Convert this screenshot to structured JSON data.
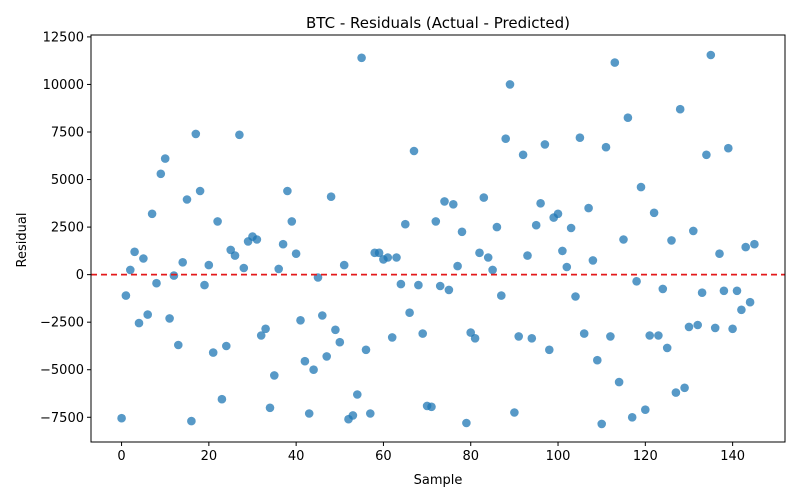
{
  "chart_data": {
    "type": "scatter",
    "title": "BTC - Residuals (Actual - Predicted)",
    "xlabel": "Sample",
    "ylabel": "Residual",
    "xlim": [
      -7,
      152
    ],
    "ylim": [
      -8800,
      12600
    ],
    "xticks": [
      0,
      20,
      40,
      60,
      80,
      100,
      120,
      140
    ],
    "yticks": [
      -7500,
      -5000,
      -2500,
      0,
      2500,
      5000,
      7500,
      10000,
      12500
    ],
    "ytick_labels": [
      "−7500",
      "−5000",
      "−2500",
      "0",
      "2500",
      "5000",
      "7500",
      "10000",
      "12500"
    ],
    "reference_line": {
      "y": 0,
      "style": "dashed",
      "color": "#e31a1c"
    },
    "point_color": "#1f77b4",
    "point_alpha": 0.75,
    "grid": false,
    "series": [
      {
        "x": [
          0,
          1,
          2,
          3,
          4,
          5,
          6,
          7,
          8,
          9,
          10,
          11,
          12,
          13,
          14,
          15,
          16,
          17,
          18,
          19,
          20,
          21,
          22,
          23,
          24,
          25,
          26,
          27,
          28,
          29,
          30,
          31,
          32,
          33,
          34,
          35,
          36,
          37,
          38,
          39,
          40,
          41,
          42,
          43,
          44,
          45,
          46,
          47,
          48,
          49,
          50,
          51,
          52,
          53,
          54,
          55,
          56,
          57,
          58,
          59,
          60,
          61,
          62,
          63,
          64,
          65,
          66,
          67,
          68,
          69,
          70,
          71,
          72,
          73,
          74,
          75,
          76,
          77,
          78,
          79,
          80,
          81,
          82,
          83,
          84,
          85,
          86,
          87,
          88,
          89,
          90,
          91,
          92,
          93,
          94,
          95,
          96,
          97,
          98,
          99,
          100,
          101,
          102,
          103,
          104,
          105,
          106,
          107,
          108,
          109,
          110,
          111,
          112,
          113,
          114,
          115,
          116,
          117,
          118,
          119,
          120,
          121,
          122,
          123,
          124,
          125,
          126,
          127,
          128,
          129,
          130,
          131,
          132,
          133,
          134,
          135,
          136,
          137,
          138,
          139,
          140,
          141,
          142,
          143,
          144,
          145
        ],
        "y": [
          -7550,
          -1100,
          250,
          1200,
          -2550,
          850,
          -2100,
          3200,
          -450,
          5300,
          6100,
          -2300,
          -50,
          -3700,
          650,
          3950,
          -7700,
          7400,
          4400,
          -550,
          500,
          -4100,
          2800,
          -6550,
          -3750,
          1300,
          1000,
          7350,
          350,
          1750,
          2000,
          1850,
          -3200,
          -2850,
          -7000,
          -5300,
          300,
          1600,
          4400,
          2800,
          1100,
          -2400,
          -4550,
          -7300,
          -5000,
          -150,
          -2150,
          -4300,
          4100,
          -2900,
          -3550,
          500,
          -7600,
          -7400,
          -6300,
          11400,
          -3950,
          -7300,
          1150,
          1150,
          800,
          900,
          -3300,
          900,
          -500,
          2650,
          -2000,
          6500,
          -550,
          -3100,
          -6900,
          -6950,
          2800,
          -600,
          3850,
          -800,
          3700,
          450,
          2250,
          -7800,
          -3050,
          -3350,
          1150,
          4050,
          900,
          250,
          2500,
          -1100,
          7150,
          10000,
          -7250,
          -3250,
          6300,
          1000,
          -3350,
          2600,
          3750,
          6850,
          -3950,
          3000,
          3200,
          1250,
          400,
          2450,
          -1150,
          7200,
          -3100,
          3500,
          750,
          -4500,
          -7850,
          6700,
          -3250,
          11150,
          -5650,
          1850,
          8250,
          -7500,
          -350,
          4600,
          -7100,
          -3200,
          3250,
          -3200,
          -750,
          -3850,
          1800,
          -6200,
          8700,
          -5950,
          -2750,
          2300,
          -2650,
          -950,
          6300,
          11550,
          -2800,
          1100,
          -850,
          6650,
          -2850,
          -850,
          -1850,
          1450,
          -1450,
          1600
        ]
      }
    ]
  }
}
